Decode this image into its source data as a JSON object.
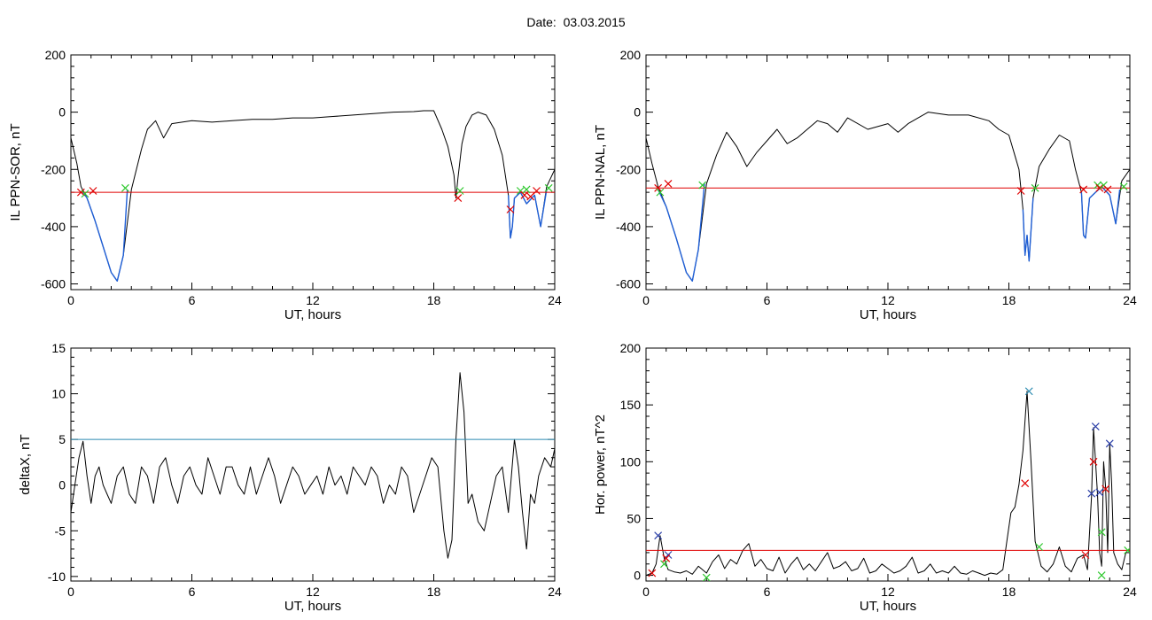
{
  "title": "Date:  03.03.2015",
  "colors": {
    "black": "#000000",
    "red": "#e00000",
    "blue": "#1f5fd6",
    "teal": "#2a8ab0",
    "green": "#2dc82d",
    "navy": "#2b3fa8"
  },
  "chart_data": [
    {
      "id": "sor",
      "type": "line",
      "xlabel": "UT, hours",
      "ylabel": "IL PPN-SOR, nT",
      "xlim": [
        0,
        24
      ],
      "ylim": [
        -620,
        200
      ],
      "xticks": [
        0,
        6,
        12,
        18,
        24
      ],
      "yticks": [
        -600,
        -400,
        -200,
        0,
        200
      ],
      "series": [
        {
          "color": "black",
          "x": [
            0,
            0.3,
            0.5,
            0.8,
            1.2,
            1.6,
            2.0,
            2.3,
            2.6,
            3.0,
            3.5,
            3.8,
            4.2,
            4.6,
            5.0,
            6.0,
            7.0,
            8.0,
            9.0,
            10.0,
            11.0,
            12.0,
            13.0,
            14.0,
            15.0,
            16.0,
            17.0,
            17.5,
            18.0,
            18.4,
            18.7,
            19.0,
            19.1,
            19.2,
            19.4,
            19.6,
            19.9,
            20.2,
            20.6,
            21.0,
            21.4,
            21.7,
            21.8,
            21.9,
            22.0,
            22.3,
            22.6,
            23.0,
            23.3,
            23.6,
            24.0
          ],
          "y": [
            -90,
            -180,
            -260,
            -300,
            -380,
            -470,
            -560,
            -590,
            -500,
            -270,
            -130,
            -60,
            -30,
            -90,
            -40,
            -30,
            -35,
            -30,
            -25,
            -25,
            -20,
            -20,
            -15,
            -10,
            -5,
            0,
            2,
            5,
            5,
            -60,
            -120,
            -220,
            -300,
            -230,
            -110,
            -50,
            -10,
            0,
            -10,
            -60,
            -150,
            -290,
            -440,
            -400,
            -300,
            -280,
            -320,
            -290,
            -400,
            -260,
            -200
          ]
        },
        {
          "color": "blue",
          "x": [
            0.6,
            0.8,
            1.2,
            1.6,
            2.0,
            2.3,
            2.6,
            2.8
          ],
          "y": [
            -280,
            -300,
            -380,
            -470,
            -560,
            -590,
            -500,
            -270
          ]
        },
        {
          "color": "blue",
          "x": [
            21.7,
            21.8,
            21.9,
            22.0,
            22.3,
            22.6,
            23.0,
            23.3,
            23.6
          ],
          "y": [
            -290,
            -440,
            -400,
            -300,
            -280,
            -320,
            -290,
            -400,
            -270
          ]
        }
      ],
      "threshold": {
        "color": "red",
        "y": -280
      },
      "markers": [
        {
          "color": "red",
          "x": 0.5,
          "y": -280
        },
        {
          "color": "green",
          "x": 0.7,
          "y": -285
        },
        {
          "color": "red",
          "x": 1.1,
          "y": -275
        },
        {
          "color": "green",
          "x": 2.7,
          "y": -265
        },
        {
          "color": "red",
          "x": 19.2,
          "y": -300
        },
        {
          "color": "green",
          "x": 19.3,
          "y": -275
        },
        {
          "color": "red",
          "x": 21.8,
          "y": -340
        },
        {
          "color": "green",
          "x": 22.3,
          "y": -275
        },
        {
          "color": "red",
          "x": 22.5,
          "y": -290
        },
        {
          "color": "green",
          "x": 22.6,
          "y": -270
        },
        {
          "color": "red",
          "x": 22.8,
          "y": -295
        },
        {
          "color": "red",
          "x": 23.1,
          "y": -275
        },
        {
          "color": "green",
          "x": 23.7,
          "y": -265
        }
      ]
    },
    {
      "id": "nal",
      "type": "line",
      "xlabel": "UT, hours",
      "ylabel": "IL PPN-NAL, nT",
      "xlim": [
        0,
        24
      ],
      "ylim": [
        -620,
        200
      ],
      "xticks": [
        0,
        6,
        12,
        18,
        24
      ],
      "yticks": [
        -600,
        -400,
        -200,
        0,
        200
      ],
      "series": [
        {
          "color": "black",
          "x": [
            0,
            0.3,
            0.6,
            1.0,
            1.5,
            2.0,
            2.3,
            2.6,
            3.0,
            3.5,
            4.0,
            4.5,
            5.0,
            5.5,
            6.0,
            6.5,
            7.0,
            7.5,
            8.0,
            8.5,
            9.0,
            9.5,
            10.0,
            11.0,
            12.0,
            12.5,
            13.0,
            13.5,
            14.0,
            15.0,
            16.0,
            17.0,
            17.5,
            18.0,
            18.5,
            18.7,
            18.8,
            18.9,
            19.0,
            19.2,
            19.5,
            20.0,
            20.5,
            21.0,
            21.3,
            21.6,
            21.7,
            21.8,
            22.0,
            22.3,
            22.6,
            23.0,
            23.3,
            23.6,
            24.0
          ],
          "y": [
            -90,
            -180,
            -260,
            -330,
            -440,
            -560,
            -590,
            -480,
            -250,
            -150,
            -70,
            -120,
            -190,
            -140,
            -100,
            -60,
            -110,
            -90,
            -60,
            -30,
            -40,
            -70,
            -20,
            -60,
            -40,
            -70,
            -40,
            -20,
            0,
            -10,
            -10,
            -30,
            -60,
            -80,
            -200,
            -340,
            -500,
            -430,
            -520,
            -300,
            -190,
            -130,
            -80,
            -100,
            -200,
            -280,
            -430,
            -440,
            -300,
            -280,
            -260,
            -290,
            -390,
            -240,
            -200
          ]
        },
        {
          "color": "blue",
          "x": [
            0.6,
            1.0,
            1.5,
            2.0,
            2.3,
            2.6,
            2.9
          ],
          "y": [
            -270,
            -330,
            -440,
            -560,
            -590,
            -480,
            -250
          ]
        },
        {
          "color": "blue",
          "x": [
            18.7,
            18.8,
            18.9,
            19.0,
            19.2
          ],
          "y": [
            -340,
            -500,
            -430,
            -520,
            -300
          ]
        },
        {
          "color": "blue",
          "x": [
            21.6,
            21.7,
            21.8,
            22.0,
            22.3,
            22.6,
            23.0,
            23.3,
            23.5
          ],
          "y": [
            -280,
            -430,
            -440,
            -300,
            -280,
            -260,
            -290,
            -390,
            -270
          ]
        }
      ],
      "threshold": {
        "color": "red",
        "y": -265
      },
      "markers": [
        {
          "color": "red",
          "x": 0.6,
          "y": -265
        },
        {
          "color": "green",
          "x": 0.7,
          "y": -280
        },
        {
          "color": "red",
          "x": 1.1,
          "y": -250
        },
        {
          "color": "green",
          "x": 2.8,
          "y": -255
        },
        {
          "color": "red",
          "x": 18.6,
          "y": -275
        },
        {
          "color": "green",
          "x": 19.3,
          "y": -265
        },
        {
          "color": "red",
          "x": 21.7,
          "y": -270
        },
        {
          "color": "green",
          "x": 22.4,
          "y": -255
        },
        {
          "color": "red",
          "x": 22.5,
          "y": -265
        },
        {
          "color": "green",
          "x": 22.7,
          "y": -255
        },
        {
          "color": "red",
          "x": 22.9,
          "y": -270
        },
        {
          "color": "green",
          "x": 23.7,
          "y": -260
        }
      ]
    },
    {
      "id": "deltax",
      "type": "line",
      "xlabel": "UT, hours",
      "ylabel": "deltaX, nT",
      "xlim": [
        0,
        24
      ],
      "ylim": [
        -10.5,
        15
      ],
      "xticks": [
        0,
        6,
        12,
        18,
        24
      ],
      "yticks": [
        -10,
        -5,
        0,
        5,
        10,
        15
      ],
      "series": [
        {
          "color": "black",
          "x": [
            0,
            0.2,
            0.4,
            0.6,
            0.8,
            1.0,
            1.2,
            1.4,
            1.6,
            1.8,
            2.0,
            2.3,
            2.6,
            2.9,
            3.2,
            3.5,
            3.8,
            4.1,
            4.4,
            4.7,
            5.0,
            5.3,
            5.6,
            5.9,
            6.2,
            6.5,
            6.8,
            7.1,
            7.4,
            7.7,
            8.0,
            8.3,
            8.6,
            8.9,
            9.2,
            9.5,
            9.8,
            10.1,
            10.4,
            10.7,
            11.0,
            11.3,
            11.6,
            11.9,
            12.2,
            12.5,
            12.8,
            13.1,
            13.4,
            13.7,
            14.0,
            14.3,
            14.6,
            14.9,
            15.2,
            15.5,
            15.8,
            16.1,
            16.4,
            16.7,
            17.0,
            17.3,
            17.6,
            17.9,
            18.2,
            18.5,
            18.7,
            18.9,
            19.1,
            19.3,
            19.5,
            19.7,
            19.9,
            20.2,
            20.5,
            20.8,
            21.1,
            21.4,
            21.7,
            22.0,
            22.2,
            22.4,
            22.6,
            22.8,
            23.0,
            23.2,
            23.5,
            23.8,
            24.0
          ],
          "y": [
            -3,
            0,
            3,
            4.8,
            1,
            -2,
            1,
            2,
            0,
            -1,
            -2,
            1,
            2,
            -1,
            -2,
            2,
            1,
            -2,
            2,
            3,
            0,
            -2,
            1,
            2,
            0,
            -1,
            3,
            1,
            -1,
            2,
            2,
            0,
            -1,
            2,
            -1,
            1,
            3,
            1,
            -2,
            0,
            2,
            1,
            -1,
            0,
            1,
            -1,
            2,
            0,
            1,
            -1,
            2,
            1,
            0,
            2,
            1,
            -2,
            0,
            -1,
            2,
            1,
            -3,
            -1,
            1,
            3,
            2,
            -5,
            -8,
            -6,
            5,
            12.3,
            8,
            -2,
            -1,
            -4,
            -5,
            -2,
            1,
            2,
            -3,
            5,
            2,
            -3,
            -7,
            -1,
            -2,
            1,
            3,
            2,
            4
          ]
        }
      ],
      "threshold": {
        "color": "teal",
        "y": 5
      },
      "markers": []
    },
    {
      "id": "power",
      "type": "line",
      "xlabel": "UT, hours",
      "ylabel": "Hor. power, nT^2",
      "xlim": [
        0,
        24
      ],
      "ylim": [
        -5,
        200
      ],
      "xticks": [
        0,
        6,
        12,
        18,
        24
      ],
      "yticks": [
        0,
        50,
        100,
        150,
        200
      ],
      "series": [
        {
          "color": "black",
          "x": [
            0,
            0.3,
            0.5,
            0.7,
            0.9,
            1.1,
            1.4,
            1.7,
            2.0,
            2.3,
            2.6,
            3.0,
            3.3,
            3.6,
            3.9,
            4.2,
            4.5,
            4.8,
            5.1,
            5.4,
            5.7,
            6.0,
            6.3,
            6.6,
            6.9,
            7.2,
            7.5,
            7.8,
            8.1,
            8.4,
            8.7,
            9.0,
            9.3,
            9.6,
            9.9,
            10.2,
            10.5,
            10.8,
            11.1,
            11.4,
            11.7,
            12.0,
            12.3,
            12.6,
            12.9,
            13.2,
            13.5,
            13.8,
            14.1,
            14.4,
            14.7,
            15.0,
            15.3,
            15.6,
            15.9,
            16.2,
            16.5,
            16.8,
            17.1,
            17.4,
            17.7,
            17.9,
            18.1,
            18.3,
            18.5,
            18.7,
            18.9,
            19.1,
            19.3,
            19.6,
            19.9,
            20.2,
            20.5,
            20.8,
            21.1,
            21.4,
            21.7,
            21.9,
            22.1,
            22.2,
            22.3,
            22.4,
            22.5,
            22.6,
            22.7,
            22.8,
            22.9,
            23.0,
            23.1,
            23.2,
            23.4,
            23.6,
            23.8,
            24.0
          ],
          "y": [
            0,
            2,
            10,
            35,
            15,
            5,
            3,
            2,
            4,
            1,
            8,
            2,
            12,
            18,
            6,
            14,
            10,
            22,
            28,
            8,
            14,
            6,
            4,
            16,
            2,
            10,
            16,
            5,
            10,
            4,
            12,
            20,
            6,
            8,
            12,
            4,
            6,
            15,
            2,
            4,
            10,
            6,
            2,
            4,
            8,
            16,
            2,
            4,
            10,
            2,
            4,
            2,
            8,
            2,
            1,
            4,
            2,
            0,
            2,
            1,
            5,
            30,
            55,
            60,
            80,
            110,
            162,
            100,
            30,
            8,
            3,
            10,
            25,
            8,
            3,
            15,
            18,
            5,
            70,
            130,
            100,
            70,
            20,
            8,
            100,
            77,
            20,
            116,
            80,
            20,
            10,
            5,
            20,
            24
          ]
        }
      ],
      "threshold": {
        "color": "red",
        "y": 22
      },
      "markers": [
        {
          "color": "navy",
          "x": 0.6,
          "y": 35
        },
        {
          "color": "red",
          "x": 0.3,
          "y": 2
        },
        {
          "color": "green",
          "x": 0.9,
          "y": 10
        },
        {
          "color": "navy",
          "x": 1.1,
          "y": 18
        },
        {
          "color": "red",
          "x": 1.0,
          "y": 15
        },
        {
          "color": "green",
          "x": 3.0,
          "y": -2
        },
        {
          "color": "teal",
          "x": 19.0,
          "y": 162
        },
        {
          "color": "red",
          "x": 18.8,
          "y": 81
        },
        {
          "color": "green",
          "x": 19.5,
          "y": 25
        },
        {
          "color": "red",
          "x": 21.8,
          "y": 18
        },
        {
          "color": "navy",
          "x": 22.1,
          "y": 72
        },
        {
          "color": "navy",
          "x": 22.3,
          "y": 131
        },
        {
          "color": "red",
          "x": 22.2,
          "y": 100
        },
        {
          "color": "navy",
          "x": 22.5,
          "y": 73
        },
        {
          "color": "green",
          "x": 22.6,
          "y": 38
        },
        {
          "color": "green",
          "x": 22.6,
          "y": 0
        },
        {
          "color": "red",
          "x": 22.8,
          "y": 76
        },
        {
          "color": "navy",
          "x": 23.0,
          "y": 116
        },
        {
          "color": "green",
          "x": 23.9,
          "y": 22
        }
      ]
    }
  ]
}
